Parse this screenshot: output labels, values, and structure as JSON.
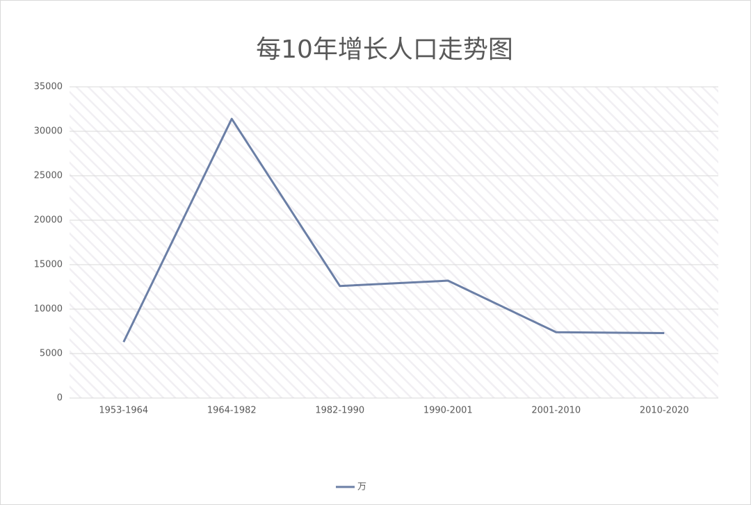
{
  "chart_data": {
    "type": "line",
    "title": "每10年增长人口走势图",
    "categories": [
      "1953-1964",
      "1964-1982",
      "1982-1990",
      "1990-2001",
      "2001-2010",
      "2010-2020"
    ],
    "series": [
      {
        "name": "万",
        "color": "#6b7fa6",
        "values": [
          6300,
          31400,
          12600,
          13200,
          7400,
          7300
        ]
      }
    ],
    "ylim": [
      0,
      35000
    ],
    "yticks": [
      0,
      5000,
      10000,
      15000,
      20000,
      25000,
      30000,
      35000
    ],
    "grid": true,
    "legend": "bottom"
  }
}
